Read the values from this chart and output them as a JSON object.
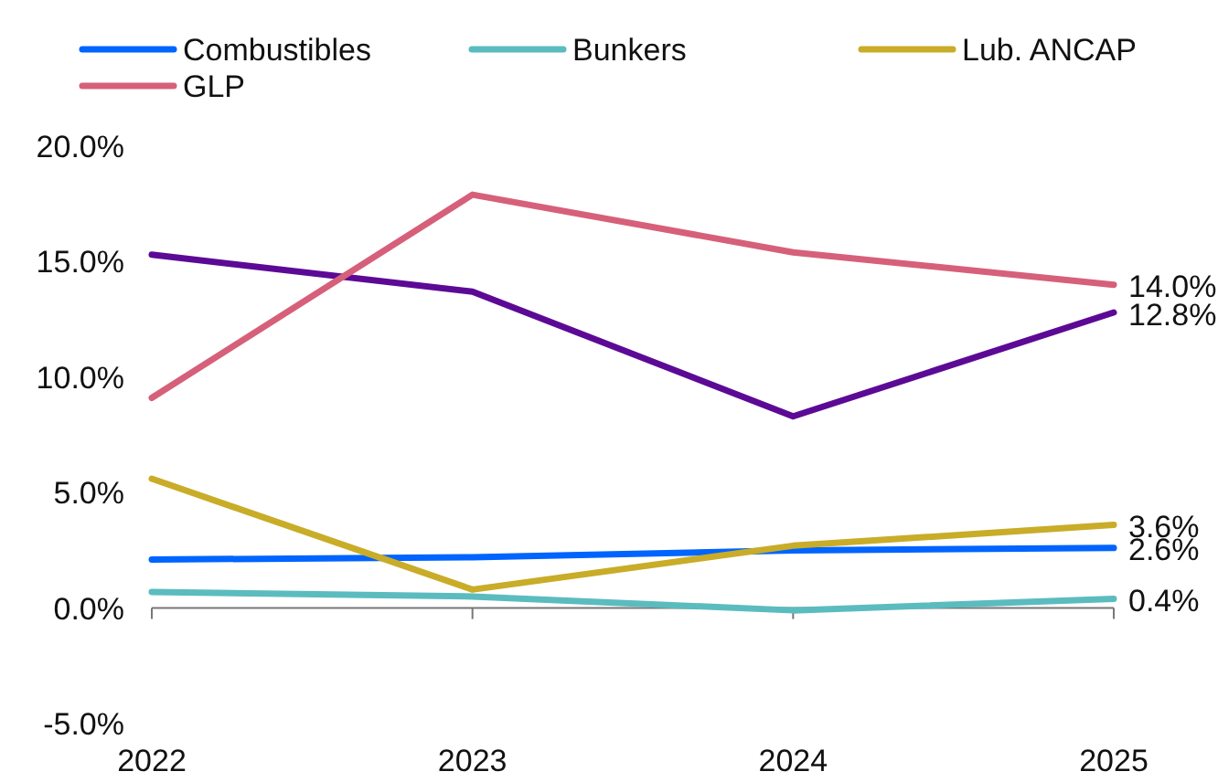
{
  "chart_data": {
    "type": "line",
    "categories": [
      "2022",
      "2023",
      "2024",
      "2025"
    ],
    "ylim": [
      -5,
      20
    ],
    "yticks": [
      {
        "value": -5,
        "label": "-5.0%"
      },
      {
        "value": 0,
        "label": "0.0%"
      },
      {
        "value": 5,
        "label": "5.0%"
      },
      {
        "value": 10,
        "label": "10.0%"
      },
      {
        "value": 15,
        "label": "15.0%"
      },
      {
        "value": 20,
        "label": "20.0%"
      }
    ],
    "legend": "top",
    "marker": "none",
    "line_style": "solid",
    "series": [
      {
        "name": "Combustibles",
        "color": "#0064ff",
        "values": [
          2.1,
          2.2,
          2.5,
          2.6
        ],
        "value_labels": [
          null,
          null,
          null,
          "2.6%"
        ]
      },
      {
        "name": "Bunkers",
        "color": "#5bbcbf",
        "values": [
          0.7,
          0.5,
          -0.1,
          0.4
        ],
        "value_labels": [
          null,
          null,
          null,
          "0.4%"
        ]
      },
      {
        "name": "Lub. ANCAP",
        "color": "#c9ac28",
        "values": [
          5.6,
          0.8,
          2.7,
          3.6
        ],
        "value_labels": [
          null,
          null,
          null,
          "3.6%"
        ]
      },
      {
        "color": "#5c0a96",
        "values": [
          15.3,
          13.7,
          8.3,
          12.8
        ],
        "value_labels": [
          null,
          null,
          null,
          "12.8%"
        ]
      },
      {
        "name": "GLP",
        "color": "#d6607a",
        "values": [
          9.1,
          17.9,
          15.4,
          14.0
        ],
        "value_labels": [
          null,
          null,
          null,
          "14.0%"
        ]
      }
    ]
  }
}
